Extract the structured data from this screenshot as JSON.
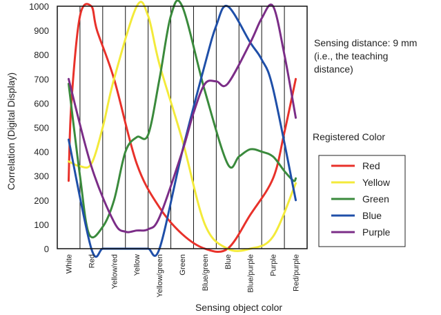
{
  "chart_data": {
    "type": "line",
    "xlabel": "Sensing object color",
    "ylabel": "Correlation (Digital Display)",
    "ylim": [
      0,
      1000
    ],
    "yticks": [
      0,
      100,
      200,
      300,
      400,
      500,
      600,
      700,
      800,
      900,
      1000
    ],
    "grid": "vertical",
    "categories": [
      "White",
      "Red",
      "Yellow/red",
      "Yellow",
      "Yellow/green",
      "Green",
      "Blue/green",
      "Blue",
      "Blue/purple",
      "Purple",
      "Red/purple"
    ],
    "annotation": {
      "lines": [
        "Sensing distance: 9 mm",
        "(i.e., the teaching",
        "distance)"
      ]
    },
    "legend": {
      "title": "Registered Color",
      "position": "right",
      "items": [
        "Red",
        "Yellow",
        "Green",
        "Blue",
        "Purple"
      ]
    },
    "colors": {
      "Red": "#e8312a",
      "Yellow": "#f3ea3a",
      "Green": "#3a8a3c",
      "Blue": "#1f4fa8",
      "Purple": "#7b2d87"
    },
    "series": [
      {
        "name": "Red",
        "x": [
          0,
          0.12,
          0.5,
          1,
          1.25,
          2,
          3,
          4,
          5,
          6,
          7,
          8,
          9,
          9.5,
          10
        ],
        "values": [
          280,
          600,
          960,
          1000,
          900,
          700,
          350,
          170,
          60,
          0,
          0,
          140,
          290,
          480,
          700
        ]
      },
      {
        "name": "Yellow",
        "x": [
          0,
          0.5,
          1,
          1.5,
          2,
          3,
          3.5,
          4,
          5,
          6,
          7,
          8,
          9,
          10
        ],
        "values": [
          360,
          340,
          350,
          500,
          700,
          1000,
          960,
          760,
          450,
          100,
          0,
          0,
          50,
          270
        ]
      },
      {
        "name": "Green",
        "x": [
          0,
          0.5,
          0.9,
          1.5,
          2,
          2.5,
          3,
          3.5,
          4,
          4.5,
          5,
          6,
          7,
          7.5,
          8,
          8.5,
          9,
          9.5,
          9.9,
          10
        ],
        "values": [
          680,
          300,
          60,
          90,
          200,
          400,
          460,
          470,
          700,
          960,
          1000,
          650,
          350,
          380,
          410,
          400,
          380,
          320,
          280,
          290
        ]
      },
      {
        "name": "Blue",
        "x": [
          0,
          1,
          1.5,
          2,
          3,
          3.5,
          4,
          5,
          6,
          6.5,
          7,
          8,
          8.5,
          9,
          10
        ],
        "values": [
          450,
          0,
          0,
          0,
          0,
          0,
          0,
          400,
          760,
          920,
          1000,
          850,
          780,
          660,
          200
        ]
      },
      {
        "name": "Purple",
        "x": [
          0,
          1,
          2,
          2.5,
          3,
          3.5,
          4,
          5,
          5.5,
          6,
          6.5,
          7,
          8,
          8.5,
          9,
          9.5,
          10
        ],
        "values": [
          700,
          340,
          110,
          70,
          75,
          80,
          130,
          400,
          560,
          680,
          690,
          680,
          850,
          950,
          1000,
          800,
          540
        ]
      }
    ]
  }
}
